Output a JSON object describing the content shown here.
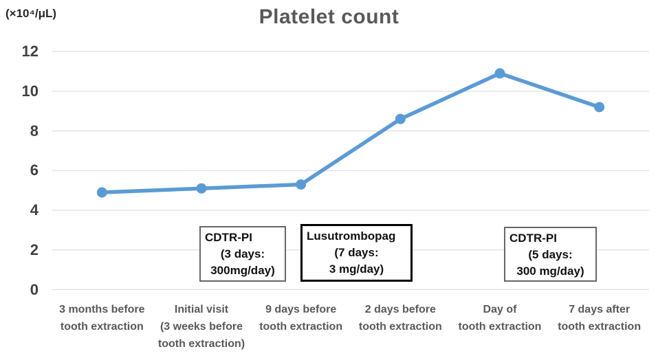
{
  "chart_data": {
    "type": "line",
    "title": "Platelet count",
    "y_unit_label": "(×10⁴/μL)",
    "xlabel": "",
    "ylabel": "Platelet count (×10⁴/μL)",
    "ylim": [
      0,
      12
    ],
    "y_ticks": [
      0,
      2,
      4,
      6,
      8,
      10,
      12
    ],
    "grid": true,
    "legend": false,
    "categories": [
      "3 months before tooth extraction",
      "Initial visit (3 weeks before tooth extraction)",
      "9 days before tooth extraction",
      "2 days before tooth extraction",
      "Day of tooth extraction",
      "7 days after tooth extraction"
    ],
    "category_label_lines": [
      [
        "3 months before",
        "tooth extraction"
      ],
      [
        "Initial visit",
        "(3 weeks before",
        "tooth extraction)"
      ],
      [
        "9 days before",
        "tooth extraction"
      ],
      [
        "2 days before",
        "tooth extraction"
      ],
      [
        "Day of",
        "tooth extraction"
      ],
      [
        "7 days after",
        "tooth extraction"
      ]
    ],
    "series": [
      {
        "name": "Platelet count",
        "values": [
          4.9,
          5.1,
          5.3,
          8.6,
          10.9,
          9.2
        ]
      }
    ],
    "annotations": [
      {
        "lines": [
          "CDTR-PI",
          "(3 days:",
          "300mg/day)"
        ],
        "border": "thin"
      },
      {
        "lines": [
          "Lusutrombopag",
          "(7 days:",
          "3 mg/day)"
        ],
        "border": "thick"
      },
      {
        "lines": [
          "CDTR-PI",
          "(5 days:",
          "300 mg/day)"
        ],
        "border": "thin"
      }
    ],
    "colors": {
      "line": "#5b9bd5",
      "marker": "#5b9bd5",
      "gridline": "#d9d9d9",
      "title": "#595959",
      "y_tick_text": "#404040",
      "x_label_text": "#595959",
      "annotation_border_thin": "#666666",
      "annotation_border_thick": "#000000"
    }
  }
}
